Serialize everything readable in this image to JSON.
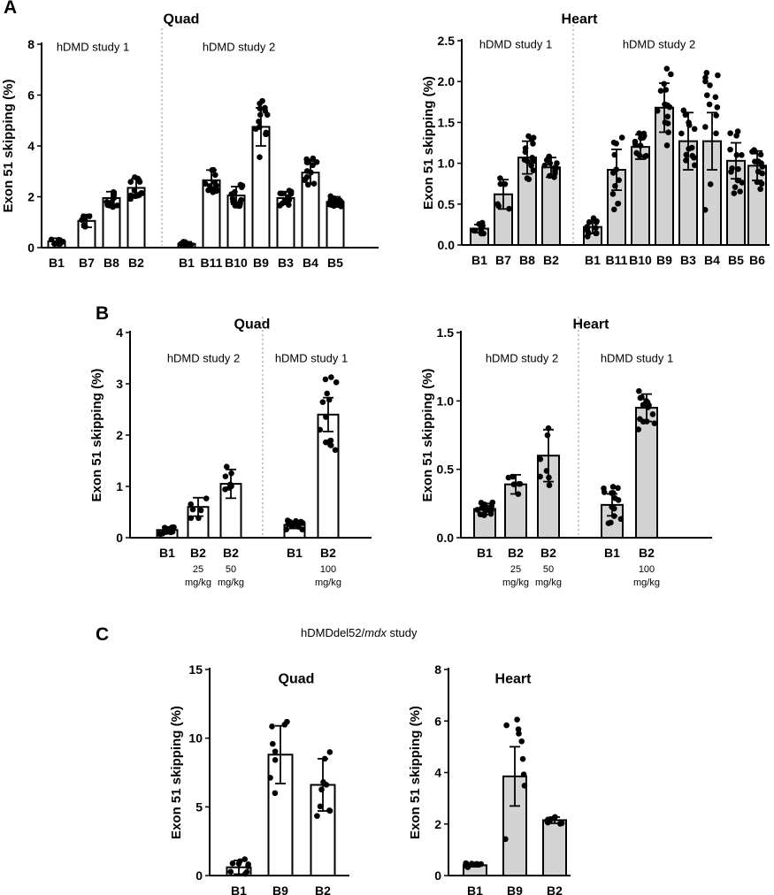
{
  "panels": {
    "A": "A",
    "B": "B",
    "C": "C"
  },
  "section_c_title": {
    "prefix": "hDMDdel52/",
    "italic": "mdx",
    "suffix": " study"
  },
  "colors": {
    "quad_fill": "#ffffff",
    "heart_fill": "#d3d3d3",
    "stroke": "#000000",
    "divider": "#888888"
  },
  "chart_data": [
    {
      "id": "A-quad",
      "type": "bar",
      "title": "Quad",
      "ylabel": "Exon 51 skipping (%)",
      "ylim": [
        0,
        8
      ],
      "yticks": [
        0,
        2,
        4,
        6,
        8
      ],
      "fill": "white",
      "groups": [
        "hDMD study 1",
        "hDMD study 2"
      ],
      "categories": [
        "B1",
        "B7",
        "B8",
        "B2",
        "B1",
        "B11",
        "B10",
        "B9",
        "B3",
        "B4",
        "B5"
      ],
      "category_group": [
        0,
        0,
        0,
        0,
        1,
        1,
        1,
        1,
        1,
        1,
        1
      ],
      "values": [
        0.25,
        1.05,
        1.95,
        2.35,
        0.15,
        2.65,
        2.05,
        4.75,
        1.95,
        2.95,
        1.8
      ],
      "error": [
        0.12,
        0.25,
        0.25,
        0.35,
        0.08,
        0.4,
        0.35,
        0.75,
        0.25,
        0.45,
        0.2
      ],
      "spread": [
        0.12,
        0.3,
        0.35,
        0.45,
        0.08,
        0.5,
        0.45,
        1.2,
        0.3,
        0.6,
        0.25
      ],
      "n": [
        10,
        6,
        12,
        12,
        8,
        12,
        14,
        14,
        14,
        14,
        12
      ]
    },
    {
      "id": "A-heart",
      "type": "bar",
      "title": "Heart",
      "ylabel": "Exon 51 skipping (%)",
      "ylim": [
        0,
        2.5
      ],
      "yticks": [
        0.0,
        0.5,
        1.0,
        1.5,
        2.0,
        2.5
      ],
      "fill": "gray",
      "groups": [
        "hDMD study 1",
        "hDMD study 2"
      ],
      "categories": [
        "B1",
        "B7",
        "B8",
        "B2",
        "B1",
        "B11",
        "B10",
        "B9",
        "B3",
        "B4",
        "B5",
        "B6"
      ],
      "category_group": [
        0,
        0,
        0,
        0,
        1,
        1,
        1,
        1,
        1,
        1,
        1,
        1
      ],
      "values": [
        0.2,
        0.62,
        1.07,
        0.95,
        0.22,
        0.92,
        1.2,
        1.68,
        1.27,
        1.27,
        1.03,
        0.97
      ],
      "error": [
        0.05,
        0.18,
        0.2,
        0.12,
        0.08,
        0.25,
        0.15,
        0.3,
        0.35,
        0.35,
        0.22,
        0.18
      ],
      "spread": [
        0.08,
        0.2,
        0.3,
        0.15,
        0.12,
        0.5,
        0.2,
        0.55,
        0.4,
        0.9,
        0.45,
        0.3
      ],
      "n": [
        10,
        6,
        14,
        12,
        14,
        12,
        14,
        14,
        14,
        14,
        14,
        14
      ]
    },
    {
      "id": "B-quad",
      "type": "bar",
      "title": "Quad",
      "ylabel": "Exon 51 skipping (%)",
      "ylim": [
        0,
        4
      ],
      "yticks": [
        0,
        1,
        2,
        3,
        4
      ],
      "fill": "white",
      "groups": [
        "hDMD study 2",
        "hDMD study 1"
      ],
      "categories": [
        "B1",
        "B2",
        "B2",
        "B1",
        "B2"
      ],
      "category_group": [
        0,
        0,
        0,
        1,
        1
      ],
      "sublabels": [
        [
          "",
          ""
        ],
        [
          "25",
          "mg/kg"
        ],
        [
          "50",
          "mg/kg"
        ],
        [
          "",
          ""
        ],
        [
          "100",
          "mg/kg"
        ]
      ],
      "values": [
        0.15,
        0.6,
        1.05,
        0.25,
        2.4
      ],
      "error": [
        0.06,
        0.18,
        0.28,
        0.07,
        0.33
      ],
      "spread": [
        0.08,
        0.25,
        0.35,
        0.1,
        0.8
      ],
      "n": [
        14,
        6,
        7,
        14,
        14
      ]
    },
    {
      "id": "B-heart",
      "type": "bar",
      "title": "Heart",
      "ylabel": "Exon 51 skipping (%)",
      "ylim": [
        0,
        1.5
      ],
      "yticks": [
        0.0,
        0.5,
        1.0,
        1.5
      ],
      "fill": "gray",
      "groups": [
        "hDMD study 2",
        "hDMD study 1"
      ],
      "categories": [
        "B1",
        "B2",
        "B2",
        "B1",
        "B2"
      ],
      "category_group": [
        0,
        0,
        0,
        1,
        1
      ],
      "sublabels": [
        [
          "",
          ""
        ],
        [
          "25",
          "mg/kg"
        ],
        [
          "50",
          "mg/kg"
        ],
        [
          "",
          ""
        ],
        [
          "100",
          "mg/kg"
        ]
      ],
      "values": [
        0.21,
        0.39,
        0.6,
        0.24,
        0.95
      ],
      "error": [
        0.04,
        0.07,
        0.19,
        0.08,
        0.1
      ],
      "spread": [
        0.05,
        0.08,
        0.24,
        0.14,
        0.16
      ],
      "n": [
        14,
        6,
        7,
        14,
        14
      ]
    },
    {
      "id": "C-quad",
      "type": "bar",
      "title": "Quad",
      "ylabel": "Exon 51 skipping (%)",
      "ylim": [
        0,
        15
      ],
      "yticks": [
        0,
        5,
        10,
        15
      ],
      "fill": "white",
      "categories": [
        "B1",
        "B9",
        "B2"
      ],
      "values": [
        0.6,
        8.8,
        6.6
      ],
      "error": [
        0.5,
        2.1,
        1.9
      ],
      "spread": [
        0.6,
        3.0,
        2.5
      ],
      "n": [
        9,
        8,
        9
      ]
    },
    {
      "id": "C-heart",
      "type": "bar",
      "title": "Heart",
      "ylabel": "Exon 51 skipping (%)",
      "ylim": [
        0,
        8
      ],
      "yticks": [
        0,
        2,
        4,
        6,
        8
      ],
      "fill": "gray",
      "categories": [
        "B1",
        "B9",
        "B2"
      ],
      "values": [
        0.4,
        3.85,
        2.15
      ],
      "error": [
        0.06,
        1.15,
        0.12
      ],
      "spread": [
        0.08,
        2.6,
        0.15
      ],
      "n": [
        9,
        9,
        9
      ]
    }
  ]
}
